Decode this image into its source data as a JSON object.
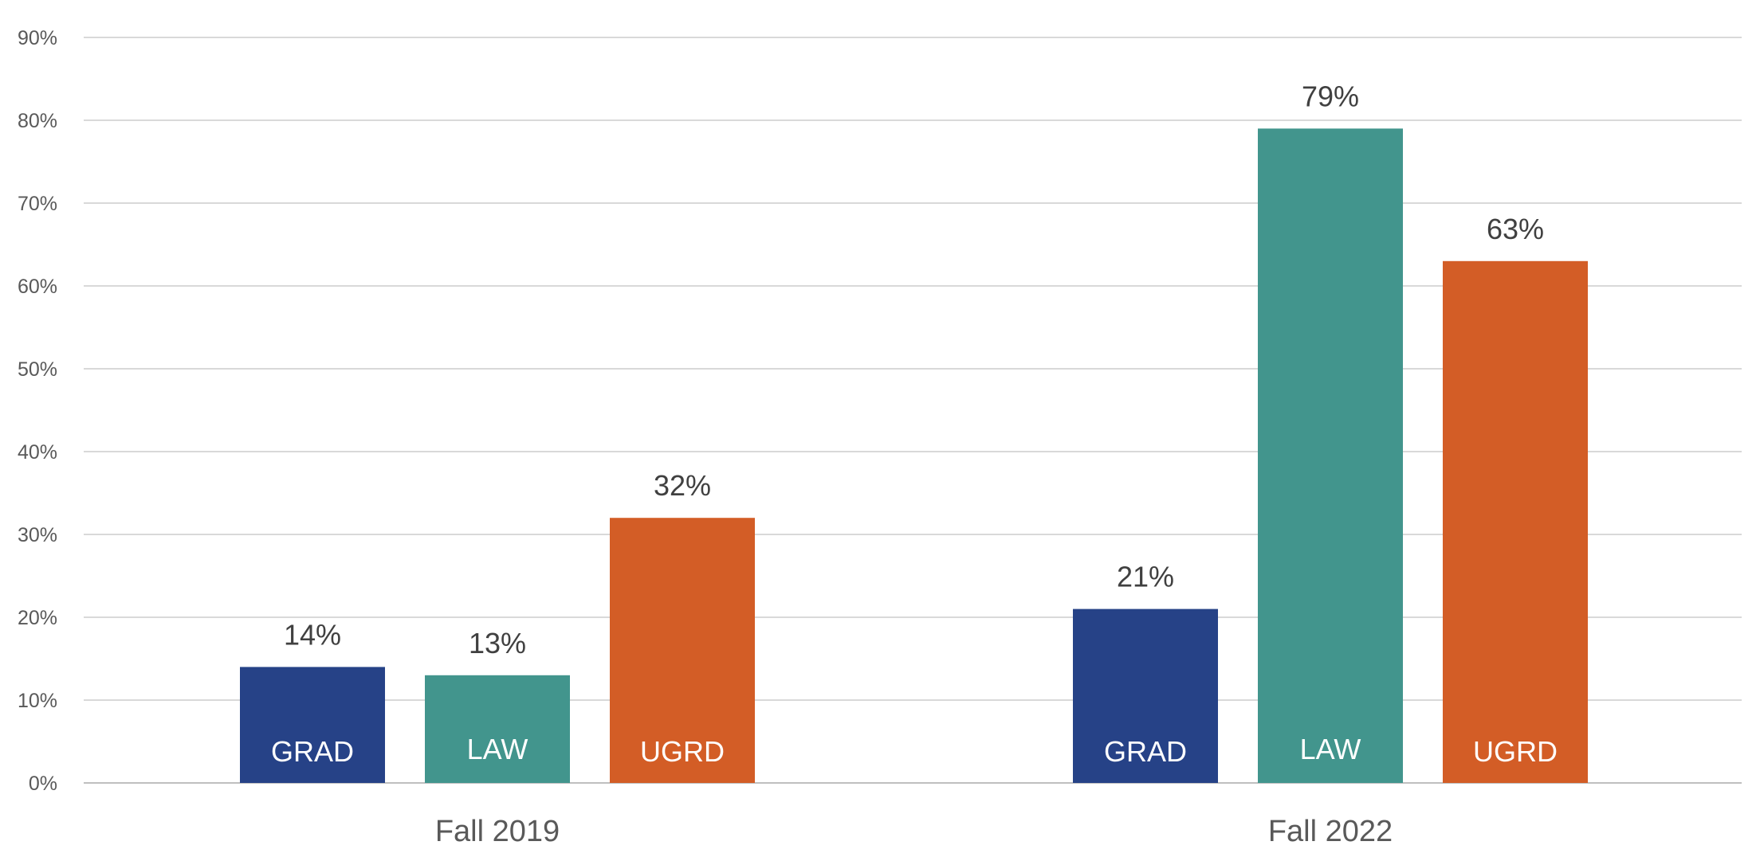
{
  "chart_data": {
    "type": "bar",
    "title": "",
    "xlabel": "",
    "ylabel": "",
    "ylim": [
      0,
      90
    ],
    "y_tick_step": 10,
    "y_tick_suffix": "%",
    "grid": true,
    "legend": "none",
    "categories": [
      "Fall 2019",
      "Fall 2022"
    ],
    "series": [
      {
        "name": "GRAD",
        "values": [
          14,
          21
        ],
        "color": "#264287"
      },
      {
        "name": "LAW",
        "values": [
          13,
          79
        ],
        "color": "#42958D"
      },
      {
        "name": "UGRD",
        "values": [
          32,
          63
        ],
        "color": "#D35D26"
      }
    ],
    "data_labels": [
      [
        "14%",
        "21%"
      ],
      [
        "13%",
        "79%"
      ],
      [
        "32%",
        "63%"
      ]
    ]
  },
  "colors": {
    "grid": "#D9D9D9",
    "axis_text": "#595959",
    "data_label_text": "#404040",
    "bar_label_text": "#FFFFFF"
  }
}
